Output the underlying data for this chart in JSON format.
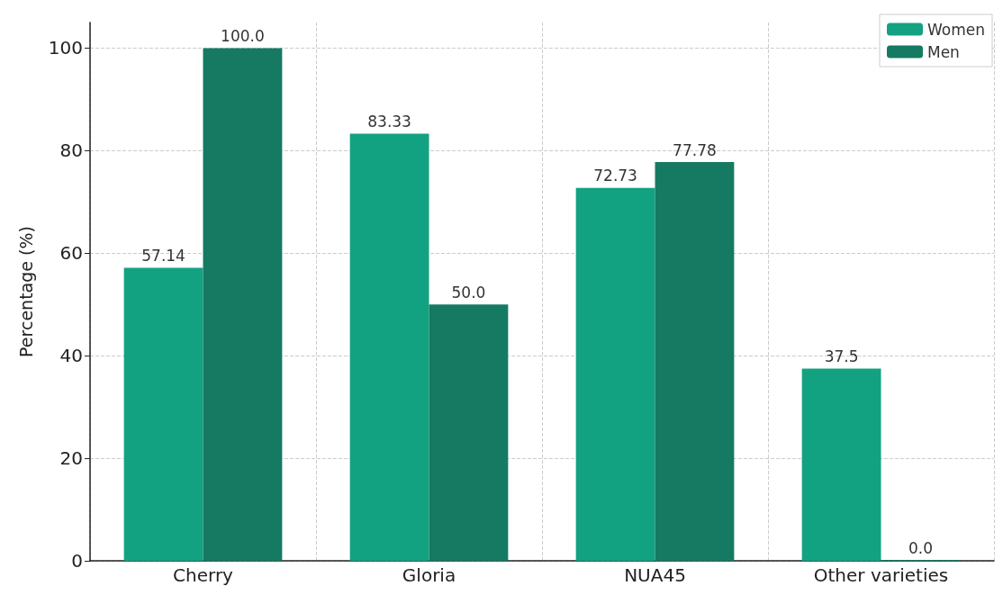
{
  "chart_data": {
    "type": "bar",
    "ylabel": "Percentage (%)",
    "categories": [
      "Cherry",
      "Gloria",
      "NUA45",
      "Other varieties"
    ],
    "series": [
      {
        "name": "Women",
        "color": "#13a281",
        "values": [
          57.14,
          83.33,
          72.73,
          37.5
        ],
        "value_labels": [
          "57.14",
          "83.33",
          "72.73",
          "37.5"
        ]
      },
      {
        "name": "Men",
        "color": "#167a62",
        "values": [
          100,
          50,
          77.78,
          0
        ],
        "value_labels": [
          "100.0",
          "50.0",
          "77.78",
          "0.0"
        ]
      }
    ],
    "ylim": [
      0,
      105
    ],
    "yticks": [
      0,
      20,
      40,
      60,
      80,
      100
    ],
    "grid": true,
    "legend": "top right"
  }
}
